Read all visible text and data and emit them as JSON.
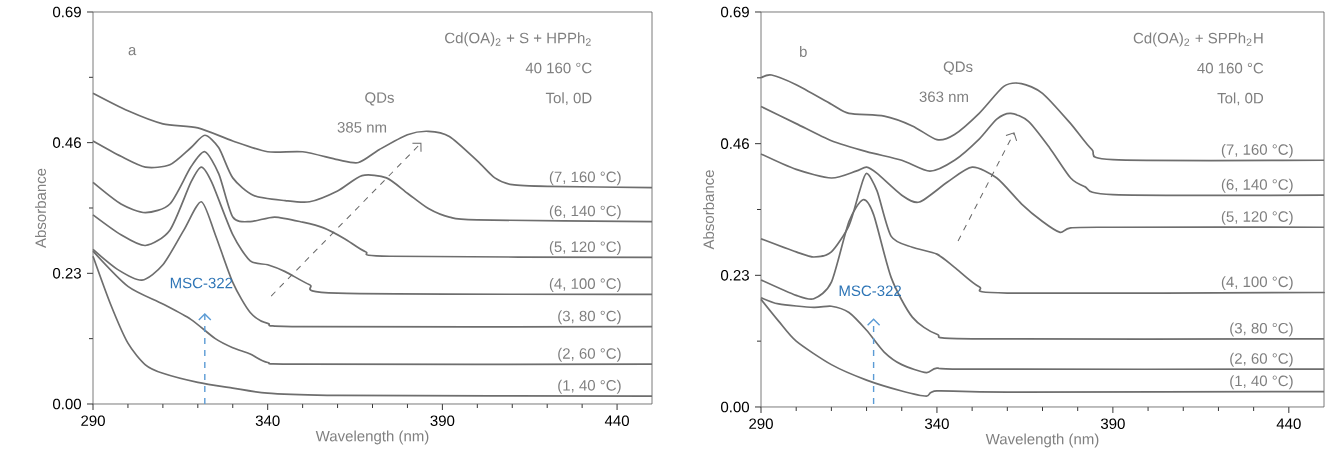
{
  "chart_data": [
    {
      "type": "line",
      "title": "a",
      "xlabel": "Wavelength (nm)",
      "ylabel": "Absorbance",
      "xlim": [
        290,
        450
      ],
      "ylim": [
        0,
        0.69
      ],
      "xticks": [
        290,
        340,
        390,
        440
      ],
      "yticks": [
        {
          "value": 0,
          "label": "0.00"
        },
        0.23,
        0.46,
        0.69
      ],
      "series": [
        {
          "name": "(1, 40 °C)",
          "color": "#6e6e6e",
          "x": [
            290,
            295,
            300,
            305,
            310,
            320,
            330,
            340,
            360,
            450
          ],
          "values": [
            0.26,
            0.176,
            0.107,
            0.069,
            0.054,
            0.038,
            0.028,
            0.019,
            0.015,
            0.014
          ]
        },
        {
          "name": "(2, 60 °C)",
          "color": "#6e6e6e",
          "x": [
            290,
            300,
            310,
            318,
            325,
            330,
            335,
            340,
            350,
            450
          ],
          "values": [
            0.269,
            0.207,
            0.176,
            0.149,
            0.115,
            0.099,
            0.088,
            0.073,
            0.07,
            0.07
          ]
        },
        {
          "name": "(3, 80 °C)",
          "color": "#6e6e6e",
          "x": [
            290,
            297,
            304,
            310,
            316,
            321,
            325,
            330,
            335,
            340,
            350,
            450
          ],
          "values": [
            0.272,
            0.237,
            0.218,
            0.245,
            0.306,
            0.356,
            0.298,
            0.214,
            0.161,
            0.142,
            0.136,
            0.136
          ]
        },
        {
          "name": "(4, 100 °C)",
          "color": "#6e6e6e",
          "x": [
            290,
            298,
            305,
            312,
            318,
            321,
            324,
            330,
            335,
            340,
            345,
            352,
            360,
            450
          ],
          "values": [
            0.333,
            0.298,
            0.279,
            0.306,
            0.39,
            0.417,
            0.39,
            0.298,
            0.252,
            0.245,
            0.233,
            0.21,
            0.195,
            0.193
          ]
        },
        {
          "name": "(5, 120 °C)",
          "color": "#6e6e6e",
          "x": [
            290,
            298,
            305,
            312,
            318,
            322,
            326,
            330,
            335,
            342,
            350,
            356,
            362,
            368,
            375,
            450
          ],
          "values": [
            0.39,
            0.352,
            0.337,
            0.352,
            0.417,
            0.444,
            0.405,
            0.329,
            0.321,
            0.329,
            0.32,
            0.31,
            0.291,
            0.268,
            0.26,
            0.258
          ]
        },
        {
          "name": "(6, 140 °C)",
          "color": "#6e6e6e",
          "x": [
            290,
            298,
            305,
            312,
            318,
            322,
            326,
            330,
            336,
            345,
            352,
            360,
            367,
            374,
            380,
            386,
            392,
            400,
            450
          ],
          "values": [
            0.463,
            0.436,
            0.417,
            0.421,
            0.451,
            0.473,
            0.451,
            0.398,
            0.367,
            0.358,
            0.356,
            0.375,
            0.402,
            0.398,
            0.371,
            0.344,
            0.329,
            0.324,
            0.321
          ]
        },
        {
          "name": "(7, 160 °C)",
          "color": "#6e6e6e",
          "x": [
            290,
            300,
            310,
            320,
            330,
            340,
            350,
            360,
            366,
            372,
            380,
            386,
            392,
            400,
            405,
            410,
            420,
            450
          ],
          "values": [
            0.547,
            0.516,
            0.493,
            0.486,
            0.463,
            0.444,
            0.444,
            0.43,
            0.425,
            0.448,
            0.474,
            0.48,
            0.471,
            0.428,
            0.398,
            0.386,
            0.383,
            0.381
          ]
        }
      ],
      "annotations": [
        "Cd(OA)$_{2}$ + S + HPPh$_{2}$",
        "40    160 °C",
        "Tol, 0D",
        "QDs",
        "385 nm",
        "MSC-322"
      ]
    },
    {
      "type": "line",
      "title": "b",
      "xlabel": "Wavelength (nm)",
      "ylabel": "Absorbance",
      "xlim": [
        290,
        450
      ],
      "ylim": [
        0,
        0.69
      ],
      "xticks": [
        290,
        340,
        390,
        440
      ],
      "yticks": [
        {
          "value": 0,
          "label": "0.00"
        },
        0.23,
        0.46,
        0.69
      ],
      "series": [
        {
          "name": "(1, 40 °C)",
          "color": "#6e6e6e",
          "x": [
            290,
            295,
            300,
            310,
            320,
            330,
            337,
            340,
            360,
            450
          ],
          "values": [
            0.188,
            0.15,
            0.115,
            0.074,
            0.047,
            0.028,
            0.019,
            0.028,
            0.026,
            0.027
          ]
        },
        {
          "name": "(2, 60 °C)",
          "color": "#6e6e6e",
          "x": [
            290,
            295,
            305,
            310,
            315,
            320,
            325,
            330,
            337,
            340,
            350,
            450
          ],
          "values": [
            0.191,
            0.18,
            0.174,
            0.176,
            0.165,
            0.134,
            0.096,
            0.074,
            0.06,
            0.068,
            0.066,
            0.066
          ]
        },
        {
          "name": "(3, 80 °C)",
          "color": "#6e6e6e",
          "x": [
            290,
            300,
            305,
            310,
            315,
            319,
            322,
            327,
            333,
            340,
            350,
            450
          ],
          "values": [
            0.222,
            0.195,
            0.189,
            0.218,
            0.324,
            0.362,
            0.336,
            0.226,
            0.157,
            0.127,
            0.119,
            0.119
          ]
        },
        {
          "name": "(4, 100 °C)",
          "color": "#6e6e6e",
          "x": [
            290,
            300,
            305,
            310,
            315,
            318,
            320,
            323,
            327,
            333,
            340,
            345,
            352,
            360,
            450
          ],
          "values": [
            0.294,
            0.271,
            0.262,
            0.271,
            0.317,
            0.377,
            0.408,
            0.377,
            0.298,
            0.279,
            0.267,
            0.244,
            0.21,
            0.199,
            0.2
          ]
        },
        {
          "name": "(5, 120 °C)",
          "color": "#6e6e6e",
          "x": [
            290,
            300,
            310,
            317,
            320,
            323,
            330,
            335,
            343,
            350,
            357,
            364,
            370,
            375,
            378,
            390,
            450
          ],
          "values": [
            0.442,
            0.415,
            0.4,
            0.412,
            0.419,
            0.408,
            0.37,
            0.358,
            0.393,
            0.419,
            0.4,
            0.355,
            0.324,
            0.305,
            0.313,
            0.314,
            0.314
          ]
        },
        {
          "name": "(6, 140 °C)",
          "color": "#6e6e6e",
          "x": [
            290,
            300,
            310,
            320,
            330,
            338,
            345,
            352,
            357,
            361,
            366,
            372,
            378,
            382,
            390,
            450
          ],
          "values": [
            0.525,
            0.495,
            0.465,
            0.446,
            0.431,
            0.412,
            0.431,
            0.468,
            0.503,
            0.513,
            0.499,
            0.453,
            0.4,
            0.385,
            0.371,
            0.37
          ]
        },
        {
          "name": "(7, 160 °C)",
          "color": "#6e6e6e",
          "x": [
            290,
            293,
            300,
            310,
            315,
            325,
            333,
            340,
            345,
            352,
            359,
            364,
            370,
            378,
            384,
            390,
            450
          ],
          "values": [
            0.575,
            0.58,
            0.563,
            0.529,
            0.513,
            0.508,
            0.491,
            0.467,
            0.476,
            0.513,
            0.56,
            0.565,
            0.548,
            0.495,
            0.45,
            0.432,
            0.431
          ]
        }
      ],
      "annotations": [
        "Cd(OA)$_{2}$ + SPPh$_{2}$H",
        "40    160 °C",
        "Tol, 0D",
        "QDs",
        "363 nm",
        "MSC-322"
      ]
    }
  ]
}
